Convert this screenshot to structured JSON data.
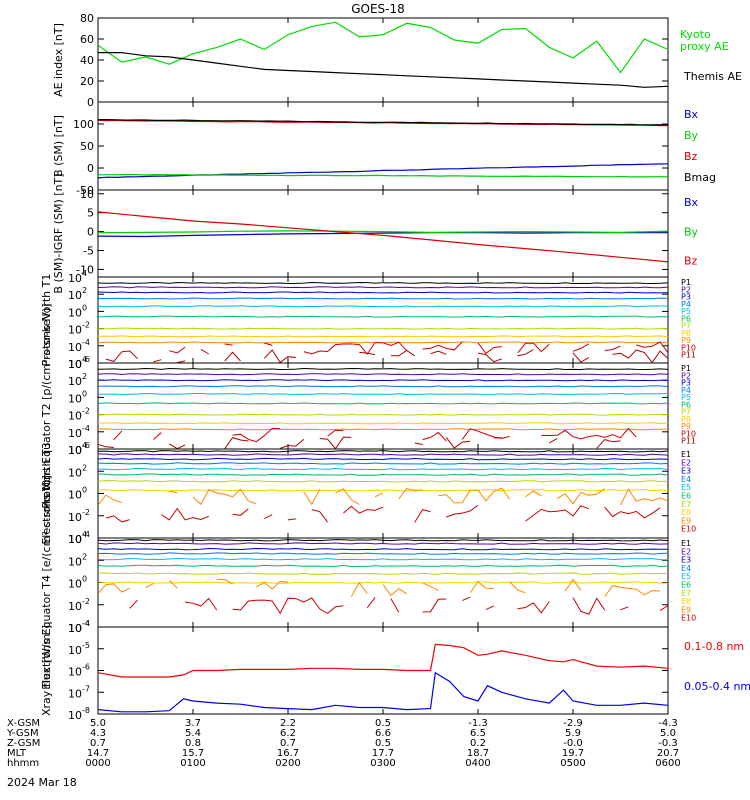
{
  "title": "GOES-18",
  "date_label": "2024 Mar 18",
  "x_axis": {
    "tick_labels": [
      "0000",
      "0100",
      "0200",
      "0300",
      "0400",
      "0500",
      "0600"
    ],
    "range_hours": [
      0,
      6
    ],
    "ephemeris": [
      {
        "name": "X-GSM",
        "values": [
          "5.0",
          "3.7",
          "2.2",
          "0.5",
          "-1.3",
          "-2.9",
          "-4.3"
        ]
      },
      {
        "name": "Y-GSM",
        "values": [
          "4.3",
          "5.4",
          "6.2",
          "6.6",
          "6.5",
          "5.9",
          "5.0"
        ]
      },
      {
        "name": "Z-GSM",
        "values": [
          "0.7",
          "0.8",
          "0.7",
          "0.5",
          "0.2",
          "-0.0",
          "-0.3"
        ]
      },
      {
        "name": "MLT",
        "values": [
          "14.7",
          "15.7",
          "16.7",
          "17.7",
          "18.7",
          "19.7",
          "20.7"
        ]
      },
      {
        "name": "hhmm",
        "values": [
          "0000",
          "0100",
          "0200",
          "0300",
          "0400",
          "0500",
          "0600"
        ]
      }
    ]
  },
  "chart_data": [
    {
      "type": "line",
      "ylabel": "AE index [nT]",
      "ylim": [
        0,
        80
      ],
      "yticks": [
        "0",
        "20",
        "40",
        "60",
        "80"
      ],
      "x_hours": [
        0,
        0.25,
        0.5,
        0.75,
        1,
        1.25,
        1.5,
        1.75,
        2,
        2.25,
        2.5,
        2.75,
        3,
        3.25,
        3.5,
        3.75,
        4,
        4.25,
        4.5,
        4.75,
        5,
        5.25,
        5.5,
        5.75,
        6
      ],
      "series": [
        {
          "name": "Kyoto proxy AE",
          "color": "#00dd00",
          "values": [
            54,
            38,
            43,
            36,
            46,
            52,
            60,
            50,
            64,
            72,
            76,
            62,
            64,
            75,
            71,
            59,
            56,
            69,
            70,
            52,
            42,
            58,
            28,
            60,
            50
          ]
        },
        {
          "name": "Themis AE",
          "color": "#000000",
          "values": [
            47,
            47,
            44,
            43,
            40,
            37,
            34,
            31,
            30,
            29,
            28,
            27,
            26,
            25,
            24,
            23,
            22,
            21,
            20,
            19,
            18,
            17,
            16,
            14,
            15
          ]
        }
      ]
    },
    {
      "type": "line",
      "ylabel": "B (SM) [nT]",
      "ylim": [
        -50,
        150
      ],
      "yticks": [
        "-50",
        "0",
        "50",
        "100"
      ],
      "x_hours": [
        0,
        6
      ],
      "series": [
        {
          "name": "Bx",
          "color": "#0000cc",
          "values": [
            -22,
            10
          ]
        },
        {
          "name": "By",
          "color": "#00cc00",
          "values": [
            -15,
            -20
          ]
        },
        {
          "name": "Bz",
          "color": "#dd0000",
          "values": [
            108,
            97
          ]
        },
        {
          "name": "Bmag",
          "color": "#000000",
          "values": [
            110,
            98
          ]
        }
      ]
    },
    {
      "type": "line",
      "ylabel": "B (SM)-IGRF (SM) [nT]",
      "ylim": [
        -12,
        11
      ],
      "yticks": [
        "-10",
        "-5",
        "0",
        "5",
        "10"
      ],
      "x_hours": [
        0,
        0.5,
        1,
        1.5,
        2,
        2.5,
        3,
        3.5,
        4,
        4.5,
        5,
        5.5,
        6
      ],
      "series": [
        {
          "name": "Bx",
          "color": "#0000cc",
          "values": [
            -1.2,
            -1.3,
            -1.0,
            -0.8,
            -0.6,
            -0.5,
            -0.4,
            -0.3,
            -0.3,
            -0.4,
            -0.3,
            -0.3,
            -0.3
          ]
        },
        {
          "name": "By",
          "color": "#00cc00",
          "values": [
            -0.3,
            -0.2,
            -0.1,
            0.1,
            0.2,
            0.1,
            0.0,
            -0.2,
            -0.1,
            0.0,
            -0.1,
            -0.2,
            0.1
          ]
        },
        {
          "name": "Bz",
          "color": "#dd0000",
          "values": [
            5.2,
            4.0,
            2.8,
            2.0,
            1.0,
            0.0,
            -1.0,
            -2.2,
            -3.4,
            -4.5,
            -5.6,
            -6.8,
            -8.0
          ]
        }
      ]
    },
    {
      "type": "line",
      "ylabel": "Protons North T1",
      "log_exponents": [
        -6,
        4
      ],
      "yticks_exp": [
        -6,
        -4,
        -2,
        0,
        2,
        4
      ],
      "channels": [
        {
          "name": "P1",
          "color": "#000000",
          "log_value": 3.3
        },
        {
          "name": "P2",
          "color": "#5500aa",
          "log_value": 2.8
        },
        {
          "name": "P3",
          "color": "#0000cc",
          "log_value": 2.2
        },
        {
          "name": "P4",
          "color": "#0077ff",
          "log_value": 1.5
        },
        {
          "name": "P5",
          "color": "#00bbee",
          "log_value": 0.6
        },
        {
          "name": "P6",
          "color": "#00bb66",
          "log_value": -0.6
        },
        {
          "name": "P7",
          "color": "#aadd00",
          "log_value": -2.0
        },
        {
          "name": "P8",
          "color": "#ffcc00",
          "log_value": -2.9
        },
        {
          "name": "P9",
          "color": "#ff8800",
          "log_value": -3.6
        },
        {
          "name": "P10",
          "color": "#cc0000",
          "log_value": -4.3
        },
        {
          "name": "P11",
          "color": "#aa0000",
          "log_value": -5.2
        }
      ]
    },
    {
      "type": "line",
      "ylabel": "Protons Equator T2 [p/(cm²-s-sr-keV)]",
      "log_exponents": [
        -6,
        4
      ],
      "yticks_exp": [
        -6,
        -4,
        -2,
        0,
        2,
        4
      ],
      "channels": [
        {
          "name": "P1",
          "color": "#000000",
          "log_value": 3.3
        },
        {
          "name": "P2",
          "color": "#5500aa",
          "log_value": 2.7
        },
        {
          "name": "P3",
          "color": "#0000cc",
          "log_value": 2.0
        },
        {
          "name": "P4",
          "color": "#0077ff",
          "log_value": 1.3
        },
        {
          "name": "P5",
          "color": "#00bbee",
          "log_value": 0.4
        },
        {
          "name": "P6",
          "color": "#00bb66",
          "log_value": -0.7
        },
        {
          "name": "P7",
          "color": "#aadd00",
          "log_value": -2.0
        },
        {
          "name": "P8",
          "color": "#ffcc00",
          "log_value": -3.0
        },
        {
          "name": "P9",
          "color": "#ff8800",
          "log_value": -3.7
        },
        {
          "name": "P10",
          "color": "#cc0000",
          "log_value": -4.4
        },
        {
          "name": "P11",
          "color": "#aa0000",
          "log_value": -5.3
        }
      ]
    },
    {
      "type": "line",
      "ylabel": "Electrons North T3",
      "log_exponents": [
        -4,
        4
      ],
      "yticks_exp": [
        -4,
        -2,
        0,
        2,
        4
      ],
      "channels": [
        {
          "name": "E1",
          "color": "#000000",
          "log_value": 3.8
        },
        {
          "name": "E2",
          "color": "#5500aa",
          "log_value": 3.5
        },
        {
          "name": "E3",
          "color": "#0000cc",
          "log_value": 3.1
        },
        {
          "name": "E4",
          "color": "#0077ff",
          "log_value": 2.7
        },
        {
          "name": "E5",
          "color": "#00bbee",
          "log_value": 2.2
        },
        {
          "name": "E6",
          "color": "#00bb66",
          "log_value": 1.7
        },
        {
          "name": "E7",
          "color": "#aadd00",
          "log_value": 1.1
        },
        {
          "name": "E8",
          "color": "#ffcc00",
          "log_value": 0.3
        },
        {
          "name": "E9",
          "color": "#ff8800",
          "log_value": -0.3
        },
        {
          "name": "E10",
          "color": "#cc0000",
          "log_value": -1.8
        }
      ]
    },
    {
      "type": "line",
      "ylabel": "Electrons Equator T4 [e/(cm²-s-sr-keV)]",
      "log_exponents": [
        -4,
        4
      ],
      "yticks_exp": [
        -4,
        -2,
        0,
        2,
        4
      ],
      "channels": [
        {
          "name": "E1",
          "color": "#000000",
          "log_value": 3.8
        },
        {
          "name": "E2",
          "color": "#5500aa",
          "log_value": 3.5
        },
        {
          "name": "E3",
          "color": "#0000cc",
          "log_value": 3.0
        },
        {
          "name": "E4",
          "color": "#0077ff",
          "log_value": 2.6
        },
        {
          "name": "E5",
          "color": "#00bbee",
          "log_value": 2.1
        },
        {
          "name": "E6",
          "color": "#00bb66",
          "log_value": 1.5
        },
        {
          "name": "E7",
          "color": "#aadd00",
          "log_value": 0.8
        },
        {
          "name": "E8",
          "color": "#ffcc00",
          "log_value": 0.0
        },
        {
          "name": "E9",
          "color": "#ff8800",
          "log_value": -0.5
        },
        {
          "name": "E10",
          "color": "#cc0000",
          "log_value": -2.1
        }
      ]
    },
    {
      "type": "line",
      "ylabel": "Xray flux [W/m²]",
      "log_exponents": [
        -8,
        -4
      ],
      "yticks_exp": [
        -8,
        -7,
        -6,
        -5,
        -4
      ],
      "x_hours": [
        0,
        0.25,
        0.5,
        0.75,
        0.9,
        1.0,
        1.25,
        1.5,
        1.75,
        2,
        2.25,
        2.5,
        2.75,
        3,
        3.25,
        3.5,
        3.55,
        3.7,
        3.85,
        4,
        4.1,
        4.25,
        4.5,
        4.75,
        4.9,
        5.0,
        5.25,
        5.5,
        5.75,
        6
      ],
      "series": [
        {
          "name": "0.1-0.8 nm",
          "color": "#ee0000",
          "log_values": [
            -6.1,
            -6.3,
            -6.3,
            -6.3,
            -6.2,
            -6.0,
            -6.0,
            -5.95,
            -5.95,
            -5.95,
            -5.9,
            -5.9,
            -5.95,
            -5.95,
            -6.0,
            -6.0,
            -4.8,
            -4.85,
            -4.95,
            -5.3,
            -5.25,
            -5.1,
            -5.3,
            -5.55,
            -5.6,
            -5.5,
            -5.8,
            -5.85,
            -5.8,
            -5.9
          ]
        },
        {
          "name": "0.05-0.4 nm",
          "color": "#0000ee",
          "log_values": [
            -7.8,
            -7.9,
            -7.9,
            -7.85,
            -7.3,
            -7.4,
            -7.5,
            -7.55,
            -7.7,
            -7.75,
            -7.8,
            -7.6,
            -7.7,
            -7.7,
            -7.8,
            -7.75,
            -6.1,
            -6.5,
            -7.2,
            -7.4,
            -6.7,
            -7.0,
            -7.3,
            -7.5,
            -6.9,
            -7.4,
            -7.6,
            -7.6,
            -7.5,
            -7.6
          ]
        }
      ]
    }
  ]
}
